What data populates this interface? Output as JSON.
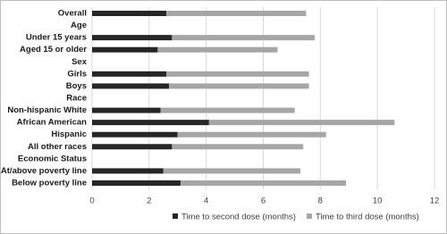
{
  "chart_data": {
    "type": "stacked-bar-horizontal",
    "categories": [
      "Overall",
      "Age",
      "Under 15 years",
      "Aged 15 or older",
      "Sex",
      "Girls",
      "Boys",
      "Race",
      "Non-hispanic White",
      "African American",
      "Hispanic",
      "All other races",
      "Economic Status",
      "At/above poverty line",
      "Below poverty line"
    ],
    "series": [
      {
        "name": "Time to second dose (months)",
        "color": "#262626",
        "values": [
          2.6,
          null,
          2.8,
          2.3,
          null,
          2.6,
          2.7,
          null,
          2.4,
          4.1,
          3.0,
          2.8,
          null,
          2.5,
          3.1
        ]
      },
      {
        "name": "Time to third dose (months)",
        "color": "#a6a6a6",
        "values": [
          4.9,
          null,
          5.0,
          4.2,
          null,
          5.0,
          4.9,
          null,
          4.7,
          6.5,
          5.2,
          4.6,
          null,
          4.8,
          5.8
        ]
      }
    ],
    "xlim": [
      0,
      12
    ],
    "xticks": [
      0,
      2,
      4,
      6,
      8,
      10,
      12
    ],
    "grid": true,
    "legend": "bottom"
  }
}
